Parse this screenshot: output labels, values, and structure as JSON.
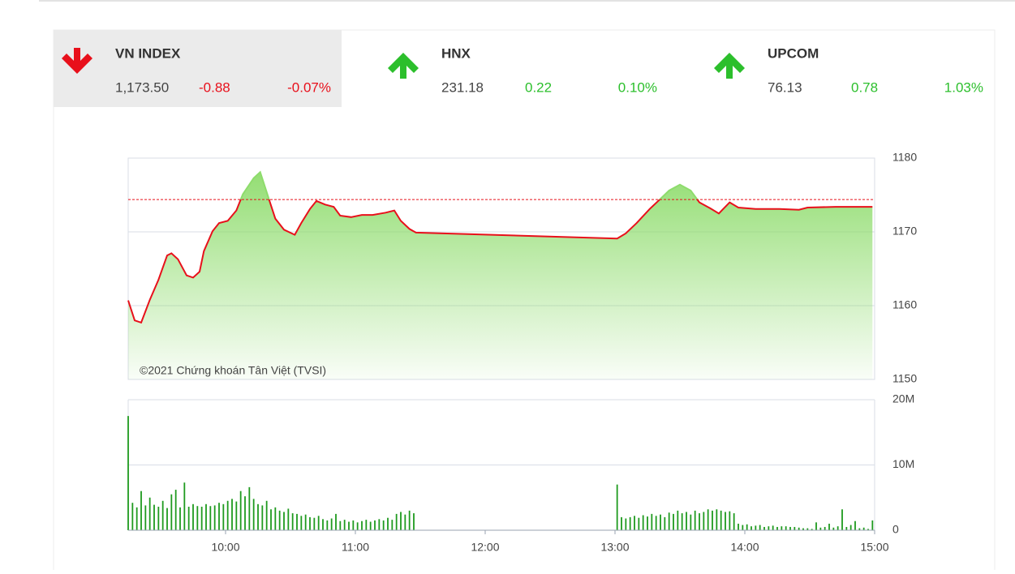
{
  "indices": [
    {
      "name": "VN INDEX",
      "value": "1,173.50",
      "change": "-0.88",
      "percent": "-0.07%",
      "direction": "down"
    },
    {
      "name": "HNX",
      "value": "231.18",
      "change": "0.22",
      "percent": "0.10%",
      "direction": "up"
    },
    {
      "name": "UPCOM",
      "value": "76.13",
      "change": "0.78",
      "percent": "1.03%",
      "direction": "up"
    }
  ],
  "chart_data": [
    {
      "type": "area",
      "watermark": "©2021 Chứng khoán Tân Việt (TVSI)",
      "x": [
        555,
        558,
        561,
        565,
        569,
        573,
        575,
        578,
        582,
        585,
        588,
        590,
        594,
        597,
        601,
        605,
        608,
        613,
        616,
        620,
        623,
        627,
        632,
        635,
        639,
        642,
        646,
        650,
        653,
        658,
        663,
        668,
        674,
        678,
        681,
        685,
        688,
        781,
        785,
        790,
        796,
        800,
        805,
        810,
        815,
        819,
        824,
        828,
        833,
        837,
        845,
        856,
        865,
        869,
        882,
        899
      ],
      "values": [
        1160.7,
        1158.0,
        1157.7,
        1160.8,
        1163.5,
        1166.8,
        1167.1,
        1166.3,
        1164.1,
        1163.8,
        1164.6,
        1167.4,
        1170.1,
        1171.2,
        1171.5,
        1172.9,
        1175.1,
        1177.3,
        1178.1,
        1174.5,
        1171.8,
        1170.3,
        1169.6,
        1171.2,
        1173.1,
        1174.2,
        1173.7,
        1173.4,
        1172.2,
        1172.0,
        1172.3,
        1172.3,
        1172.6,
        1172.9,
        1171.5,
        1170.4,
        1169.9,
        1169.1,
        1169.8,
        1171.2,
        1173.1,
        1174.2,
        1175.6,
        1176.4,
        1175.6,
        1174.0,
        1173.2,
        1172.5,
        1174.0,
        1173.3,
        1173.1,
        1173.1,
        1173.0,
        1173.3,
        1173.4,
        1173.4
      ],
      "reference": 1174.38,
      "color": "#e8101b",
      "fill": "#8edc6c",
      "xlim": [
        555,
        900
      ],
      "ylim": [
        1150,
        1180
      ],
      "yticks": [
        1150,
        1160,
        1170,
        1180
      ],
      "grid": true
    },
    {
      "type": "bar",
      "color": "#1f9a1f",
      "x": [
        555,
        557,
        559,
        561,
        563,
        565,
        567,
        569,
        571,
        573,
        575,
        577,
        579,
        581,
        583,
        585,
        587,
        589,
        591,
        593,
        595,
        597,
        599,
        601,
        603,
        605,
        607,
        609,
        611,
        613,
        615,
        617,
        619,
        621,
        623,
        625,
        627,
        629,
        631,
        633,
        635,
        637,
        639,
        641,
        643,
        645,
        647,
        649,
        651,
        653,
        655,
        657,
        659,
        661,
        663,
        665,
        667,
        669,
        671,
        673,
        675,
        677,
        679,
        681,
        683,
        685,
        687,
        781,
        783,
        785,
        787,
        789,
        791,
        793,
        795,
        797,
        799,
        801,
        803,
        805,
        807,
        809,
        811,
        813,
        815,
        817,
        819,
        821,
        823,
        825,
        827,
        829,
        831,
        833,
        835,
        837,
        839,
        841,
        843,
        845,
        847,
        849,
        851,
        853,
        855,
        857,
        859,
        861,
        863,
        865,
        867,
        869,
        871,
        873,
        875,
        877,
        879,
        881,
        883,
        885,
        887,
        889,
        891,
        893,
        895,
        897,
        899
      ],
      "values": [
        17500000,
        4200000,
        3500000,
        6000000,
        3800000,
        5000000,
        3900000,
        3600000,
        4500000,
        3400000,
        5500000,
        6200000,
        3500000,
        7300000,
        3600000,
        4000000,
        3700000,
        3600000,
        4000000,
        3700000,
        3800000,
        4200000,
        4000000,
        4500000,
        4800000,
        4400000,
        6000000,
        5200000,
        6600000,
        4800000,
        4000000,
        3800000,
        4500000,
        3200000,
        3500000,
        3000000,
        2800000,
        3300000,
        2600000,
        2500000,
        2200000,
        2400000,
        2000000,
        1900000,
        2200000,
        1700000,
        1500000,
        1800000,
        2500000,
        1400000,
        1600000,
        1300000,
        1500000,
        1200000,
        1400000,
        1600000,
        1300000,
        1500000,
        1700000,
        1500000,
        1900000,
        1600000,
        2500000,
        2800000,
        2400000,
        3000000,
        2600000,
        7000000,
        2000000,
        1800000,
        2000000,
        2200000,
        1900000,
        2300000,
        2100000,
        2500000,
        2200000,
        2400000,
        2000000,
        2700000,
        2500000,
        3000000,
        2600000,
        2800000,
        2400000,
        3000000,
        2600000,
        2800000,
        3200000,
        3000000,
        3200000,
        3000000,
        2800000,
        2900000,
        2600000,
        1000000,
        800000,
        900000,
        600000,
        700000,
        800000,
        500000,
        600000,
        700000,
        500000,
        600000,
        600000,
        500000,
        500000,
        400000,
        300000,
        300000,
        200000,
        1200000,
        400000,
        500000,
        1000000,
        400000,
        600000,
        3200000,
        500000,
        800000,
        1400000,
        300000,
        400000,
        200000,
        1500000
      ],
      "xlim": [
        555,
        900
      ],
      "xticks": [
        {
          "value": 600,
          "label": "10:00"
        },
        {
          "value": 660,
          "label": "11:00"
        },
        {
          "value": 720,
          "label": "12:00"
        },
        {
          "value": 780,
          "label": "13:00"
        },
        {
          "value": 840,
          "label": "14:00"
        },
        {
          "value": 900,
          "label": "15:00"
        }
      ],
      "ylim": [
        0,
        20000000
      ],
      "yticks": [
        0,
        {
          "value": 10000000,
          "label": "10M"
        },
        {
          "value": 20000000,
          "label": "20M"
        }
      ],
      "grid": true
    }
  ]
}
